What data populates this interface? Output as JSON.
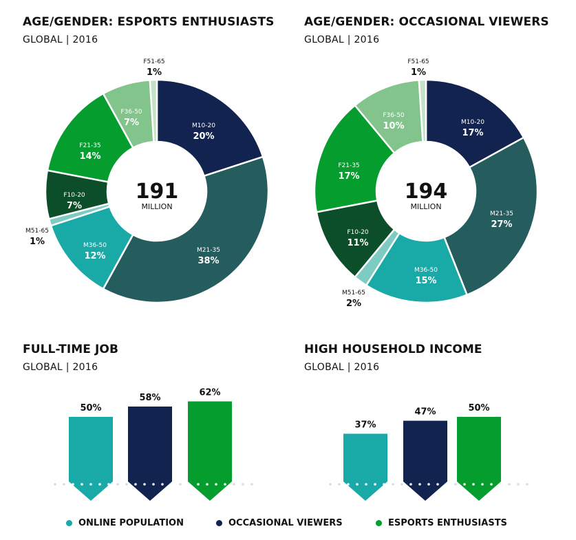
{
  "charts_text": {
    "pie1_title": "AGE/GENDER: ESPORTS ENTHUSIASTS",
    "pie1_subtitle": "GLOBAL | 2016",
    "pie2_title": "AGE/GENDER: OCCASIONAL VIEWERS",
    "pie2_subtitle": "GLOBAL | 2016",
    "bar1_title": "FULL-TIME JOB",
    "bar1_subtitle": "GLOBAL | 2016",
    "bar2_title": "HIGH HOUSEHOLD INCOME",
    "bar2_subtitle": "GLOBAL | 2016"
  },
  "legend": [
    {
      "label": "ONLINE POPULATION",
      "color": "#19aaa8"
    },
    {
      "label": "OCCASIONAL VIEWERS",
      "color": "#13234f"
    },
    {
      "label": "ESPORTS ENTHUSIASTS",
      "color": "#059e2e"
    }
  ],
  "chart_data": [
    {
      "type": "pie",
      "variant": "donut",
      "title": "AGE/GENDER: ESPORTS ENTHUSIASTS",
      "subtitle": "GLOBAL | 2016",
      "center_value": "191",
      "center_unit": "MILLION",
      "slices": [
        {
          "label": "M10-20",
          "value": 20,
          "value_label": "20%",
          "color": "#13234f"
        },
        {
          "label": "M21-35",
          "value": 38,
          "value_label": "38%",
          "color": "#255c5d"
        },
        {
          "label": "M36-50",
          "value": 12,
          "value_label": "12%",
          "color": "#19aaa8"
        },
        {
          "label": "M51-65",
          "value": 1,
          "value_label": "1%",
          "color": "#7ecbc4"
        },
        {
          "label": "F10-20",
          "value": 7,
          "value_label": "7%",
          "color": "#0c4e2a"
        },
        {
          "label": "F21-35",
          "value": 14,
          "value_label": "14%",
          "color": "#059e2e"
        },
        {
          "label": "F36-50",
          "value": 7,
          "value_label": "7%",
          "color": "#82c48b"
        },
        {
          "label": "F51-65",
          "value": 1,
          "value_label": "1%",
          "color": "#c3e2c7"
        }
      ]
    },
    {
      "type": "pie",
      "variant": "donut",
      "title": "AGE/GENDER: OCCASIONAL VIEWERS",
      "subtitle": "GLOBAL | 2016",
      "center_value": "194",
      "center_unit": "MILLION",
      "slices": [
        {
          "label": "M10-20",
          "value": 17,
          "value_label": "17%",
          "color": "#13234f"
        },
        {
          "label": "M21-35",
          "value": 27,
          "value_label": "27%",
          "color": "#255c5d"
        },
        {
          "label": "M36-50",
          "value": 15,
          "value_label": "15%",
          "color": "#19aaa8"
        },
        {
          "label": "M51-65",
          "value": 2,
          "value_label": "2%",
          "color": "#7ecbc4"
        },
        {
          "label": "F10-20",
          "value": 11,
          "value_label": "11%",
          "color": "#0c4e2a"
        },
        {
          "label": "F21-35",
          "value": 17,
          "value_label": "17%",
          "color": "#059e2e"
        },
        {
          "label": "F36-50",
          "value": 10,
          "value_label": "10%",
          "color": "#82c48b"
        },
        {
          "label": "F51-65",
          "value": 1,
          "value_label": "1%",
          "color": "#c3e2c7"
        }
      ]
    },
    {
      "type": "bar",
      "title": "FULL-TIME JOB",
      "subtitle": "GLOBAL | 2016",
      "categories": [
        "ONLINE POPULATION",
        "OCCASIONAL VIEWERS",
        "ESPORTS ENTHUSIASTS"
      ],
      "values": [
        50,
        58,
        62
      ],
      "value_labels": [
        "50%",
        "58%",
        "62%"
      ],
      "colors": [
        "#19aaa8",
        "#13234f",
        "#059e2e"
      ]
    },
    {
      "type": "bar",
      "title": "HIGH HOUSEHOLD INCOME",
      "subtitle": "GLOBAL | 2016",
      "categories": [
        "ONLINE POPULATION",
        "OCCASIONAL VIEWERS",
        "ESPORTS ENTHUSIASTS"
      ],
      "values": [
        37,
        47,
        50
      ],
      "value_labels": [
        "37%",
        "47%",
        "50%"
      ],
      "colors": [
        "#19aaa8",
        "#13234f",
        "#059e2e"
      ]
    }
  ]
}
